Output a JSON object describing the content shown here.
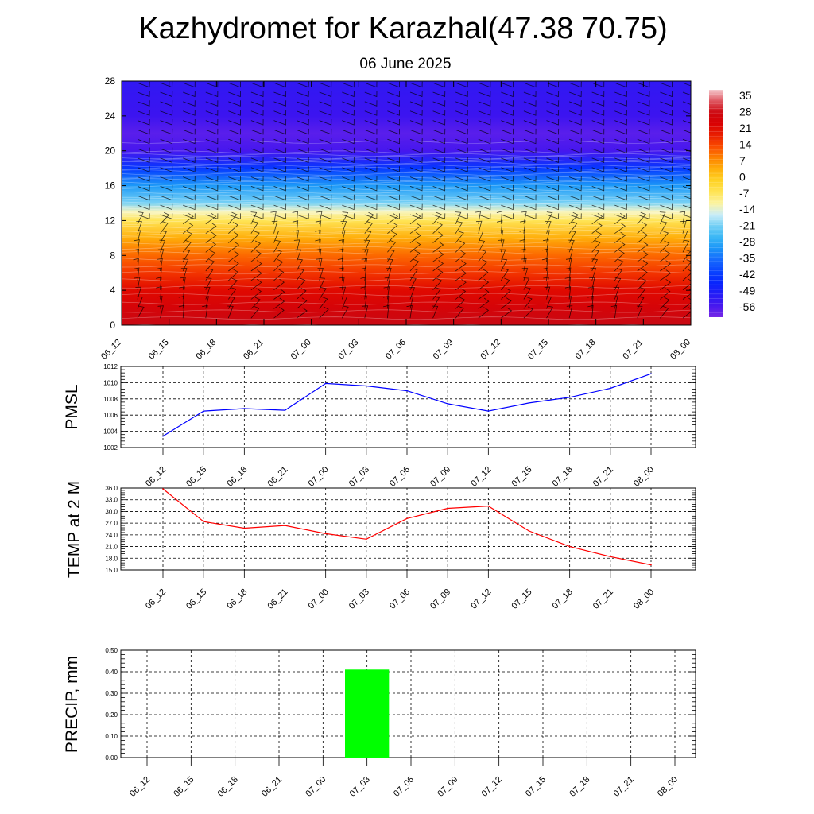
{
  "title": "Kazhydromet for Karazhal(47.38 70.75)",
  "subtitle": "06 June 2025",
  "colors": {
    "pmsl_line": "#0000ff",
    "temp_line": "#ff0000",
    "precip_bar": "#00ff00",
    "grid": "#000000"
  },
  "chart_data": [
    {
      "type": "heatmap",
      "name": "cross-section",
      "x": [
        "06_12",
        "06_15",
        "06_18",
        "06_21",
        "07_00",
        "07_03",
        "07_06",
        "07_09",
        "07_12",
        "07_15",
        "07_18",
        "07_21",
        "08_00"
      ],
      "y_ticks": [
        0,
        4,
        8,
        12,
        16,
        20,
        24,
        28
      ],
      "ylim": [
        0,
        28
      ],
      "colorbar_labels": [
        "35",
        "28",
        "21",
        "14",
        "7",
        "0",
        "-7",
        "-14",
        "-21",
        "-28",
        "-35",
        "-42",
        "-49",
        "-56"
      ],
      "colorbar_range": [
        -60,
        38
      ],
      "temperature_profile": [
        {
          "level": 0,
          "value": 30
        },
        {
          "level": 2,
          "value": 25
        },
        {
          "level": 4,
          "value": 21
        },
        {
          "level": 6,
          "value": 16
        },
        {
          "level": 8,
          "value": 11
        },
        {
          "level": 10,
          "value": 4
        },
        {
          "level": 12,
          "value": -6
        },
        {
          "level": 13,
          "value": -12
        },
        {
          "level": 14,
          "value": -20
        },
        {
          "level": 16,
          "value": -30
        },
        {
          "level": 18,
          "value": -42
        },
        {
          "level": 20,
          "value": -55
        },
        {
          "level": 22,
          "value": -57
        },
        {
          "level": 24,
          "value": -54
        },
        {
          "level": 28,
          "value": -52
        }
      ],
      "wind_barbs": true
    },
    {
      "type": "line",
      "name": "pmsl",
      "ylabel": "PMSL",
      "categories": [
        "06_12",
        "06_15",
        "06_18",
        "06_21",
        "07_00",
        "07_03",
        "07_06",
        "07_09",
        "07_12",
        "07_15",
        "07_18",
        "07_21",
        "08_00"
      ],
      "ylim": [
        1002,
        1012
      ],
      "y_ticks": [
        "1002",
        "1004",
        "1006",
        "1008",
        "1010",
        "1012"
      ],
      "values": [
        1003.4,
        1006.5,
        1006.8,
        1006.6,
        1009.9,
        1009.6,
        1009.0,
        1007.4,
        1006.5,
        1007.5,
        1008.2,
        1009.3,
        1011.1
      ]
    },
    {
      "type": "line",
      "name": "temp2m",
      "ylabel": "TEMP at 2 M",
      "categories": [
        "06_12",
        "06_15",
        "06_18",
        "06_21",
        "07_00",
        "07_03",
        "07_06",
        "07_09",
        "07_12",
        "07_15",
        "07_18",
        "07_21",
        "08_00"
      ],
      "ylim": [
        15,
        36
      ],
      "y_ticks": [
        "15.0",
        "18.0",
        "21.0",
        "24.0",
        "27.0",
        "30.0",
        "33.0",
        "36.0"
      ],
      "values": [
        35.8,
        27.4,
        25.7,
        26.4,
        24.3,
        22.9,
        28.2,
        30.8,
        31.4,
        25.0,
        21.0,
        18.4,
        16.3
      ]
    },
    {
      "type": "bar",
      "name": "precip",
      "ylabel": "PRECIP, mm",
      "categories": [
        "06_12",
        "06_15",
        "06_18",
        "06_21",
        "07_00",
        "07_03",
        "07_06",
        "07_09",
        "07_12",
        "07_15",
        "07_18",
        "07_21",
        "08_00"
      ],
      "ylim": [
        0,
        0.5
      ],
      "y_ticks": [
        "0.00",
        "0.10",
        "0.20",
        "0.30",
        "0.40",
        "0.50"
      ],
      "values": [
        0,
        0,
        0,
        0,
        0,
        0.41,
        0,
        0,
        0,
        0,
        0,
        0,
        0
      ]
    }
  ]
}
